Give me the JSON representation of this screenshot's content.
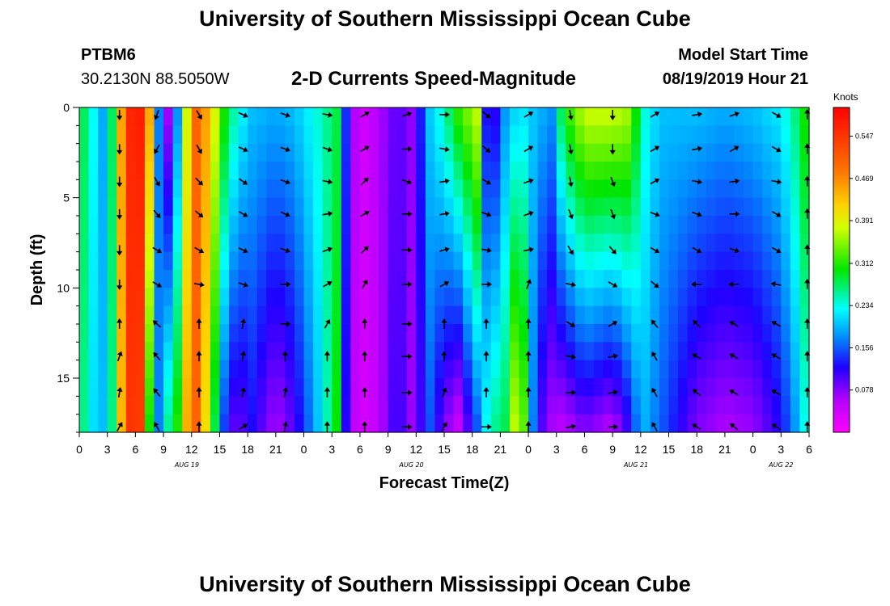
{
  "header": {
    "title": "University of Southern Mississippi Ocean Cube",
    "station_id": "PTBM6",
    "station_location": "30.2130N 88.5050W",
    "plot_title": "2-D Currents Speed-Magnitude",
    "model_label": "Model Start Time",
    "model_time": "08/19/2019 Hour 21"
  },
  "footer": {
    "title": "University of Southern Mississippi Ocean Cube"
  },
  "chart_data": {
    "type": "heatmap",
    "title": "2-D Currents Speed-Magnitude",
    "xlabel": "Forecast Time(Z)",
    "ylabel": "Depth (ft)",
    "x_unit": "hours since 08/19 00Z",
    "xlim": [
      0,
      78
    ],
    "ylim": [
      0,
      18
    ],
    "x_ticks": [
      0,
      3,
      6,
      9,
      12,
      15,
      18,
      21,
      24,
      27,
      30,
      33,
      36,
      39,
      42,
      45,
      48,
      51,
      54,
      57,
      60,
      63,
      66,
      69,
      72,
      75,
      78
    ],
    "x_tick_labels": [
      "0",
      "3",
      "6",
      "9",
      "12",
      "15",
      "18",
      "21",
      "0",
      "3",
      "6",
      "9",
      "12",
      "15",
      "18",
      "21",
      "0",
      "3",
      "6",
      "9",
      "12",
      "15",
      "18",
      "21",
      "0",
      "3",
      "6"
    ],
    "date_labels": [
      {
        "text": "AUG 19",
        "hour": 11.5
      },
      {
        "text": "AUG 20",
        "hour": 35.5
      },
      {
        "text": "AUG 21",
        "hour": 59.5
      },
      {
        "text": "AUG 22",
        "hour": 75
      }
    ],
    "y_ticks": [
      0,
      5,
      10,
      15
    ],
    "y_tick_labels": [
      "0",
      "5",
      "10",
      "15"
    ],
    "colorbar": {
      "units": "Knots",
      "min": 0,
      "max": 0.6,
      "tick_values": [
        0.078,
        0.156,
        0.234,
        0.312,
        0.391,
        0.469,
        0.547
      ],
      "tick_labels": [
        "0.078",
        "0.156",
        "0.234",
        "0.312",
        "0.391",
        "0.469",
        "0.547"
      ]
    },
    "heatmap_stops": [
      {
        "hour": 0,
        "surface": 0.3,
        "bottom": 0.3
      },
      {
        "hour": 1,
        "surface": 0.25,
        "bottom": 0.22
      },
      {
        "hour": 2.5,
        "surface": 0.19,
        "bottom": 0.2
      },
      {
        "hour": 3.8,
        "surface": 0.3,
        "bottom": 0.28
      },
      {
        "hour": 5,
        "surface": 0.56,
        "bottom": 0.55
      },
      {
        "hour": 6.5,
        "surface": 0.57,
        "bottom": 0.54
      },
      {
        "hour": 7.5,
        "surface": 0.45,
        "bottom": 0.3
      },
      {
        "hour": 8.3,
        "surface": 0.2,
        "bottom": 0.15
      },
      {
        "hour": 9.3,
        "surface": 0.05,
        "bottom": 0.26
      },
      {
        "hour": 10.3,
        "surface": 0.12,
        "bottom": 0.27
      },
      {
        "hour": 11,
        "surface": 0.32,
        "bottom": 0.42
      },
      {
        "hour": 12.5,
        "surface": 0.5,
        "bottom": 0.5
      },
      {
        "hour": 14,
        "surface": 0.43,
        "bottom": 0.36
      },
      {
        "hour": 15.3,
        "surface": 0.32,
        "bottom": 0.15
      },
      {
        "hour": 16.8,
        "surface": 0.24,
        "bottom": 0.08
      },
      {
        "hour": 18.5,
        "surface": 0.2,
        "bottom": 0.12
      },
      {
        "hour": 21,
        "surface": 0.19,
        "bottom": 0.06
      },
      {
        "hour": 23,
        "surface": 0.2,
        "bottom": 0.1
      },
      {
        "hour": 25.5,
        "surface": 0.24,
        "bottom": 0.2
      },
      {
        "hour": 27.5,
        "surface": 0.28,
        "bottom": 0.3
      },
      {
        "hour": 28.7,
        "surface": 0.11,
        "bottom": 0.08
      },
      {
        "hour": 30,
        "surface": 0.03,
        "bottom": 0.03
      },
      {
        "hour": 32,
        "surface": 0.06,
        "bottom": 0.05
      },
      {
        "hour": 34,
        "surface": 0.1,
        "bottom": 0.12
      },
      {
        "hour": 35.8,
        "surface": 0.07,
        "bottom": 0.06
      },
      {
        "hour": 37.3,
        "surface": 0.2,
        "bottom": 0.16
      },
      {
        "hour": 39,
        "surface": 0.25,
        "bottom": 0.08
      },
      {
        "hour": 40.5,
        "surface": 0.32,
        "bottom": 0.04
      },
      {
        "hour": 42.7,
        "surface": 0.38,
        "bottom": 0.16
      },
      {
        "hour": 43.7,
        "surface": 0.06,
        "bottom": 0.25
      },
      {
        "hour": 45.5,
        "surface": 0.18,
        "bottom": 0.28
      },
      {
        "hour": 47,
        "surface": 0.22,
        "bottom": 0.42
      },
      {
        "hour": 48.8,
        "surface": 0.2,
        "bottom": 0.12
      },
      {
        "hour": 50.6,
        "surface": 0.18,
        "bottom": 0.06
      },
      {
        "hour": 51.7,
        "surface": 0.3,
        "bottom": 0.05
      },
      {
        "hour": 54,
        "surface": 0.38,
        "bottom": 0.08
      },
      {
        "hour": 57,
        "surface": 0.38,
        "bottom": 0.05
      },
      {
        "hour": 59,
        "surface": 0.36,
        "bottom": 0.12
      },
      {
        "hour": 60,
        "surface": 0.25,
        "bottom": 0.2
      },
      {
        "hour": 62,
        "surface": 0.2,
        "bottom": 0.16
      },
      {
        "hour": 66,
        "surface": 0.2,
        "bottom": 0.08
      },
      {
        "hour": 69,
        "surface": 0.19,
        "bottom": 0.06
      },
      {
        "hour": 72,
        "surface": 0.2,
        "bottom": 0.07
      },
      {
        "hour": 75,
        "surface": 0.22,
        "bottom": 0.12
      },
      {
        "hour": 77,
        "surface": 0.28,
        "bottom": 0.2
      },
      {
        "hour": 78,
        "surface": 0.33,
        "bottom": 0.26
      }
    ],
    "vector_rows_depth_ft": [
      0.4,
      2.3,
      4.1,
      5.9,
      7.9,
      9.8,
      12.0,
      13.8,
      15.8,
      17.7
    ],
    "vector_columns": [
      {
        "hour": 4.3,
        "angles_deg": [
          180,
          180,
          180,
          180,
          180,
          180,
          0,
          20,
          10,
          30
        ]
      },
      {
        "hour": 8.3,
        "angles_deg": [
          200,
          210,
          150,
          140,
          120,
          120,
          310,
          320,
          320,
          330
        ]
      },
      {
        "hour": 12.8,
        "angles_deg": [
          150,
          150,
          135,
          130,
          120,
          100,
          0,
          0,
          0,
          0
        ]
      },
      {
        "hour": 17.5,
        "angles_deg": [
          115,
          115,
          125,
          120,
          115,
          110,
          10,
          10,
          10,
          60
        ]
      },
      {
        "hour": 22,
        "angles_deg": [
          110,
          110,
          110,
          115,
          110,
          90,
          90,
          0,
          10,
          10
        ]
      },
      {
        "hour": 26.5,
        "angles_deg": [
          100,
          110,
          100,
          80,
          70,
          60,
          30,
          0,
          0,
          0
        ]
      },
      {
        "hour": 30.5,
        "angles_deg": [
          60,
          60,
          45,
          60,
          45,
          30,
          0,
          0,
          0,
          0
        ]
      },
      {
        "hour": 35,
        "angles_deg": [
          70,
          90,
          110,
          90,
          90,
          90,
          90,
          90,
          90,
          90
        ]
      },
      {
        "hour": 39,
        "angles_deg": [
          90,
          100,
          80,
          80,
          75,
          60,
          0,
          0,
          20,
          30
        ]
      },
      {
        "hour": 43.5,
        "angles_deg": [
          130,
          130,
          120,
          110,
          100,
          90,
          0,
          0,
          0,
          90
        ]
      },
      {
        "hour": 48,
        "angles_deg": [
          60,
          60,
          70,
          70,
          80,
          20,
          0,
          0,
          0,
          0
        ]
      },
      {
        "hour": 52.5,
        "angles_deg": [
          170,
          170,
          170,
          160,
          150,
          100,
          120,
          100,
          90,
          80
        ]
      },
      {
        "hour": 57,
        "angles_deg": [
          180,
          180,
          160,
          160,
          140,
          120,
          60,
          80,
          80,
          90
        ]
      },
      {
        "hour": 61.5,
        "angles_deg": [
          60,
          60,
          60,
          110,
          120,
          130,
          320,
          330,
          330,
          330
        ]
      },
      {
        "hour": 66,
        "angles_deg": [
          80,
          80,
          100,
          110,
          120,
          270,
          315,
          300,
          310,
          300
        ]
      },
      {
        "hour": 70,
        "angles_deg": [
          70,
          60,
          80,
          90,
          110,
          270,
          300,
          300,
          300,
          310
        ]
      },
      {
        "hour": 74.5,
        "angles_deg": [
          120,
          120,
          100,
          120,
          120,
          280,
          300,
          300,
          300,
          300
        ]
      },
      {
        "hour": 77.8,
        "angles_deg": [
          0,
          0,
          0,
          0,
          0,
          0,
          0,
          0,
          0,
          0
        ]
      }
    ]
  }
}
